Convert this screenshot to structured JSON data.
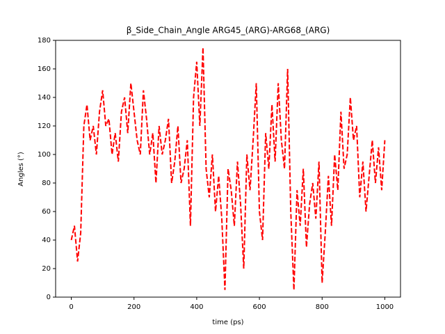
{
  "chart_data": {
    "type": "line",
    "title": "β_Side_Chain_Angle ARG45_(ARG)-ARG68_(ARG)",
    "x_label": "time (ps)",
    "y_label": "Angles (°)",
    "x": [
      0,
      10,
      20,
      30,
      40,
      50,
      60,
      70,
      80,
      90,
      100,
      110,
      120,
      130,
      140,
      150,
      160,
      170,
      180,
      190,
      200,
      210,
      220,
      230,
      240,
      250,
      260,
      270,
      280,
      290,
      300,
      310,
      320,
      330,
      340,
      350,
      360,
      370,
      380,
      390,
      400,
      410,
      420,
      430,
      440,
      450,
      460,
      470,
      480,
      490,
      500,
      510,
      520,
      530,
      540,
      550,
      560,
      570,
      580,
      590,
      600,
      610,
      620,
      630,
      640,
      650,
      660,
      670,
      680,
      690,
      700,
      710,
      720,
      730,
      740,
      750,
      760,
      770,
      780,
      790,
      800,
      810,
      820,
      830,
      840,
      850,
      860,
      870,
      880,
      890,
      900,
      910,
      920,
      930,
      940,
      950,
      960,
      970,
      980,
      990,
      1000
    ],
    "series": [
      {
        "name": "β_Side_Chain_Angle",
        "color": "#ff0000",
        "values": [
          40,
          50,
          25,
          45,
          120,
          135,
          110,
          120,
          100,
          130,
          145,
          120,
          125,
          100,
          115,
          95,
          130,
          140,
          115,
          150,
          130,
          110,
          100,
          145,
          125,
          100,
          115,
          80,
          120,
          100,
          110,
          125,
          80,
          95,
          120,
          80,
          90,
          110,
          50,
          140,
          165,
          120,
          175,
          90,
          70,
          100,
          60,
          85,
          55,
          5,
          90,
          75,
          50,
          95,
          65,
          20,
          100,
          75,
          110,
          150,
          60,
          40,
          115,
          90,
          135,
          95,
          150,
          110,
          90,
          160,
          60,
          5,
          75,
          50,
          90,
          35,
          65,
          80,
          55,
          95,
          10,
          45,
          85,
          50,
          100,
          75,
          130,
          90,
          100,
          140,
          110,
          120,
          70,
          95,
          60,
          85,
          110,
          80,
          105,
          75,
          110
        ]
      }
    ],
    "xlim": [
      -50,
      1050
    ],
    "ylim": [
      0,
      180
    ],
    "xticks": [
      0,
      200,
      400,
      600,
      800,
      1000
    ],
    "yticks": [
      0,
      20,
      40,
      60,
      80,
      100,
      120,
      140,
      160,
      180
    ]
  }
}
